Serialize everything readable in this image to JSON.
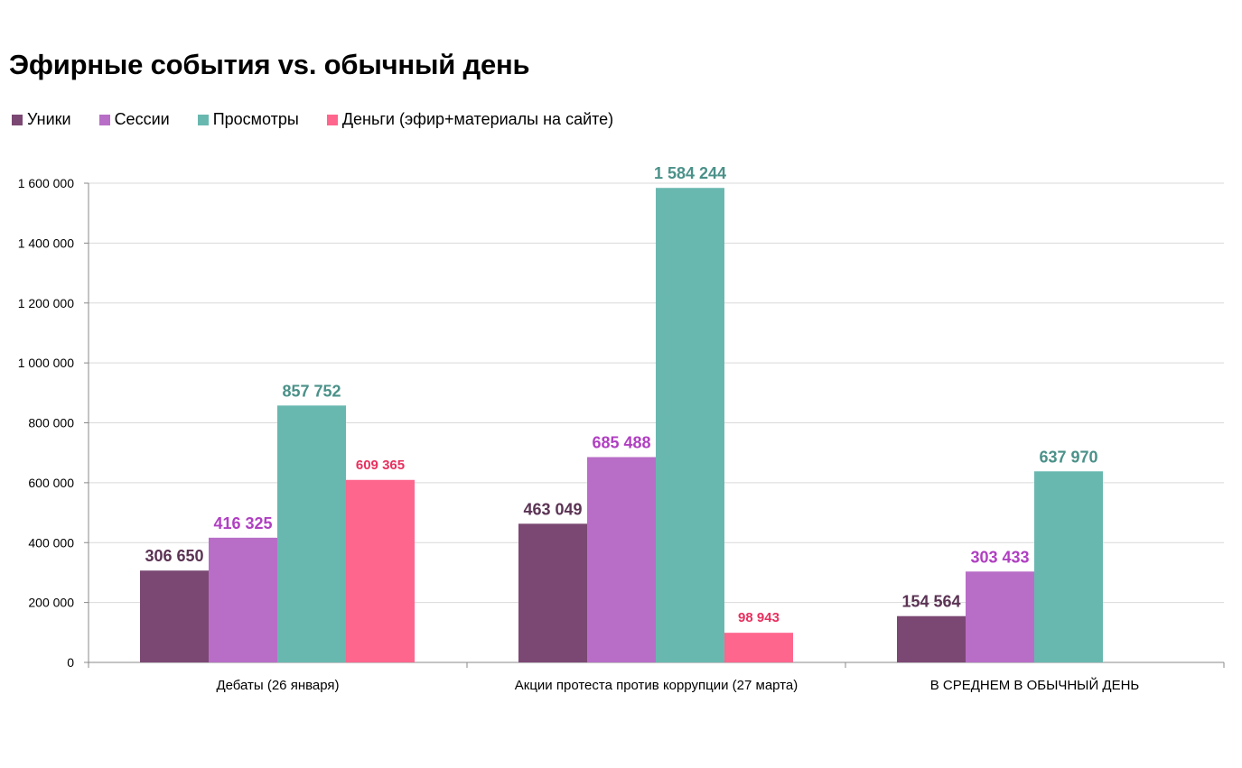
{
  "colors": {
    "uniques": "#7b4873",
    "sessions": "#b86ec7",
    "views": "#69b8b0",
    "money": "#ff668d",
    "label_uniques": "#5b3354",
    "label_sessions": "#b03fc2",
    "label_views": "#4a9189",
    "label_money": "#e8305e",
    "grid": "#d9d9d9",
    "axis": "#888888"
  },
  "chart_data": {
    "type": "bar",
    "title": "Эфирные события vs. обычный день",
    "xlabel": "",
    "ylabel": "",
    "ylim": [
      0,
      1600000
    ],
    "yticks": [
      0,
      200000,
      400000,
      600000,
      800000,
      1000000,
      1200000,
      1400000,
      1600000
    ],
    "ytick_labels": [
      "0",
      "200 000",
      "400 000",
      "600 000",
      "800 000",
      "1 000 000",
      "1 200 000",
      "1 400 000",
      "1 600 000"
    ],
    "grid": true,
    "legend_position": "top-left",
    "categories": [
      "Дебаты (26 января)",
      "Акции протеста против коррупции (27 марта)",
      "В СРЕДНЕМ В ОБЫЧНЫЙ ДЕНЬ"
    ],
    "series": [
      {
        "name": "Уники",
        "key": "uniques",
        "values": [
          306650,
          463049,
          154564
        ],
        "labels": [
          "306 650",
          "463 049",
          "154 564"
        ]
      },
      {
        "name": "Сессии",
        "key": "sessions",
        "values": [
          416325,
          685488,
          303433
        ],
        "labels": [
          "416 325",
          "685 488",
          "303 433"
        ]
      },
      {
        "name": "Просмотры",
        "key": "views",
        "values": [
          857752,
          1584244,
          637970
        ],
        "labels": [
          "857 752",
          "1 584 244",
          "637 970"
        ]
      },
      {
        "name": "Деньги (эфир+материалы на сайте)",
        "key": "money",
        "values": [
          609365,
          98943,
          null
        ],
        "labels": [
          "609 365",
          "98 943",
          ""
        ]
      }
    ]
  }
}
